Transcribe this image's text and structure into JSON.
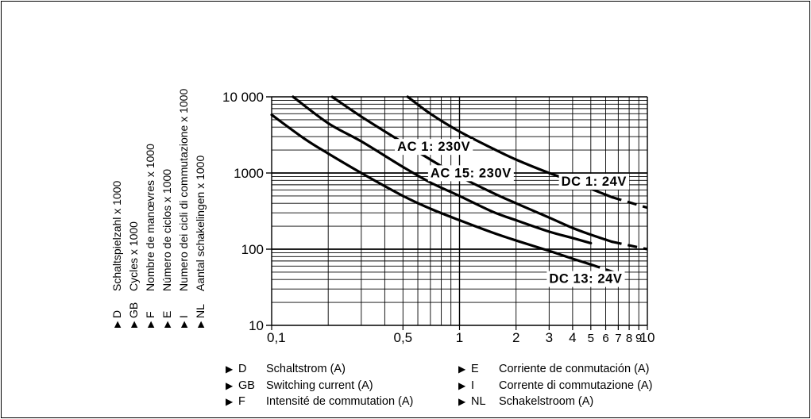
{
  "y_axis_legend": [
    {
      "code": "D",
      "text": "Schaltspielzahl x 1000"
    },
    {
      "code": "GB",
      "text": "Cycles x 1000"
    },
    {
      "code": "F",
      "text": "Nombre de manœvres x 1000"
    },
    {
      "code": "E",
      "text": "Número de ciclos x 1000"
    },
    {
      "code": "I",
      "text": "Numero dei cicli di commutazione x 1000"
    },
    {
      "code": "NL",
      "text": "Aantal schakelingen x 1000"
    }
  ],
  "x_axis_legend_left": [
    {
      "code": "D",
      "text": "Schaltstrom (A)"
    },
    {
      "code": "GB",
      "text": "Switching current (A)"
    },
    {
      "code": "F",
      "text": "Intensité de commutation (A)"
    }
  ],
  "x_axis_legend_right": [
    {
      "code": "E",
      "text": "Corriente de conmutación (A)"
    },
    {
      "code": "I",
      "text": "Corrente di commutazione (A)"
    },
    {
      "code": "NL",
      "text": "Schakelstroom (A)"
    }
  ],
  "chart_data": {
    "type": "line",
    "x_scale": "log",
    "y_scale": "log",
    "xlim": [
      0.1,
      10
    ],
    "ylim": [
      10,
      10000
    ],
    "grid": true,
    "x_tick_labels": [
      {
        "value": 0.1,
        "label": "0,1"
      },
      {
        "value": 0.5,
        "label": "0,5"
      },
      {
        "value": 1,
        "label": "1"
      },
      {
        "value": 2,
        "label": "2"
      },
      {
        "value": 3,
        "label": "3"
      },
      {
        "value": 4,
        "label": "4"
      },
      {
        "value": 5,
        "label": "5"
      },
      {
        "value": 6,
        "label": "6"
      },
      {
        "value": 7,
        "label": "7"
      },
      {
        "value": 8,
        "label": "8"
      },
      {
        "value": 9,
        "label": "9"
      },
      {
        "value": 10,
        "label": "10"
      }
    ],
    "y_tick_labels": [
      {
        "value": 10,
        "label": "10"
      },
      {
        "value": 100,
        "label": "100"
      },
      {
        "value": 1000,
        "label": "1000"
      },
      {
        "value": 10000,
        "label": "10 000"
      }
    ],
    "series": [
      {
        "name": "DC 1: 24V",
        "x": [
          0.53,
          0.7,
          1,
          1.5,
          2,
          3,
          4,
          5,
          6.5
        ],
        "y": [
          10000,
          6000,
          3500,
          2100,
          1500,
          1000,
          780,
          620,
          480
        ],
        "dashed_x": [
          6.5,
          10
        ],
        "dashed_y": [
          480,
          350
        ]
      },
      {
        "name": "AC 1: 230V",
        "x": [
          0.21,
          0.3,
          0.5,
          0.7,
          1,
          1.5,
          2,
          3,
          4,
          5,
          6.5
        ],
        "y": [
          10000,
          5500,
          2500,
          1500,
          900,
          550,
          400,
          260,
          190,
          155,
          125
        ],
        "dashed_x": [
          6.5,
          10
        ],
        "dashed_y": [
          125,
          100
        ]
      },
      {
        "name": "AC 15: 230V",
        "x": [
          0.13,
          0.2,
          0.3,
          0.5,
          0.7,
          1,
          1.5,
          2,
          3,
          4,
          5
        ],
        "y": [
          10000,
          4500,
          2600,
          1200,
          750,
          500,
          310,
          240,
          170,
          140,
          120
        ]
      },
      {
        "name": "DC 13: 24V",
        "x": [
          0.1,
          0.15,
          0.2,
          0.3,
          0.5,
          0.7,
          1,
          1.5,
          2,
          3,
          4,
          5
        ],
        "y": [
          5800,
          2800,
          1800,
          1000,
          500,
          340,
          240,
          165,
          130,
          95,
          75,
          63
        ],
        "dashed_x": [
          5,
          7.5
        ],
        "dashed_y": [
          63,
          45
        ]
      }
    ]
  }
}
